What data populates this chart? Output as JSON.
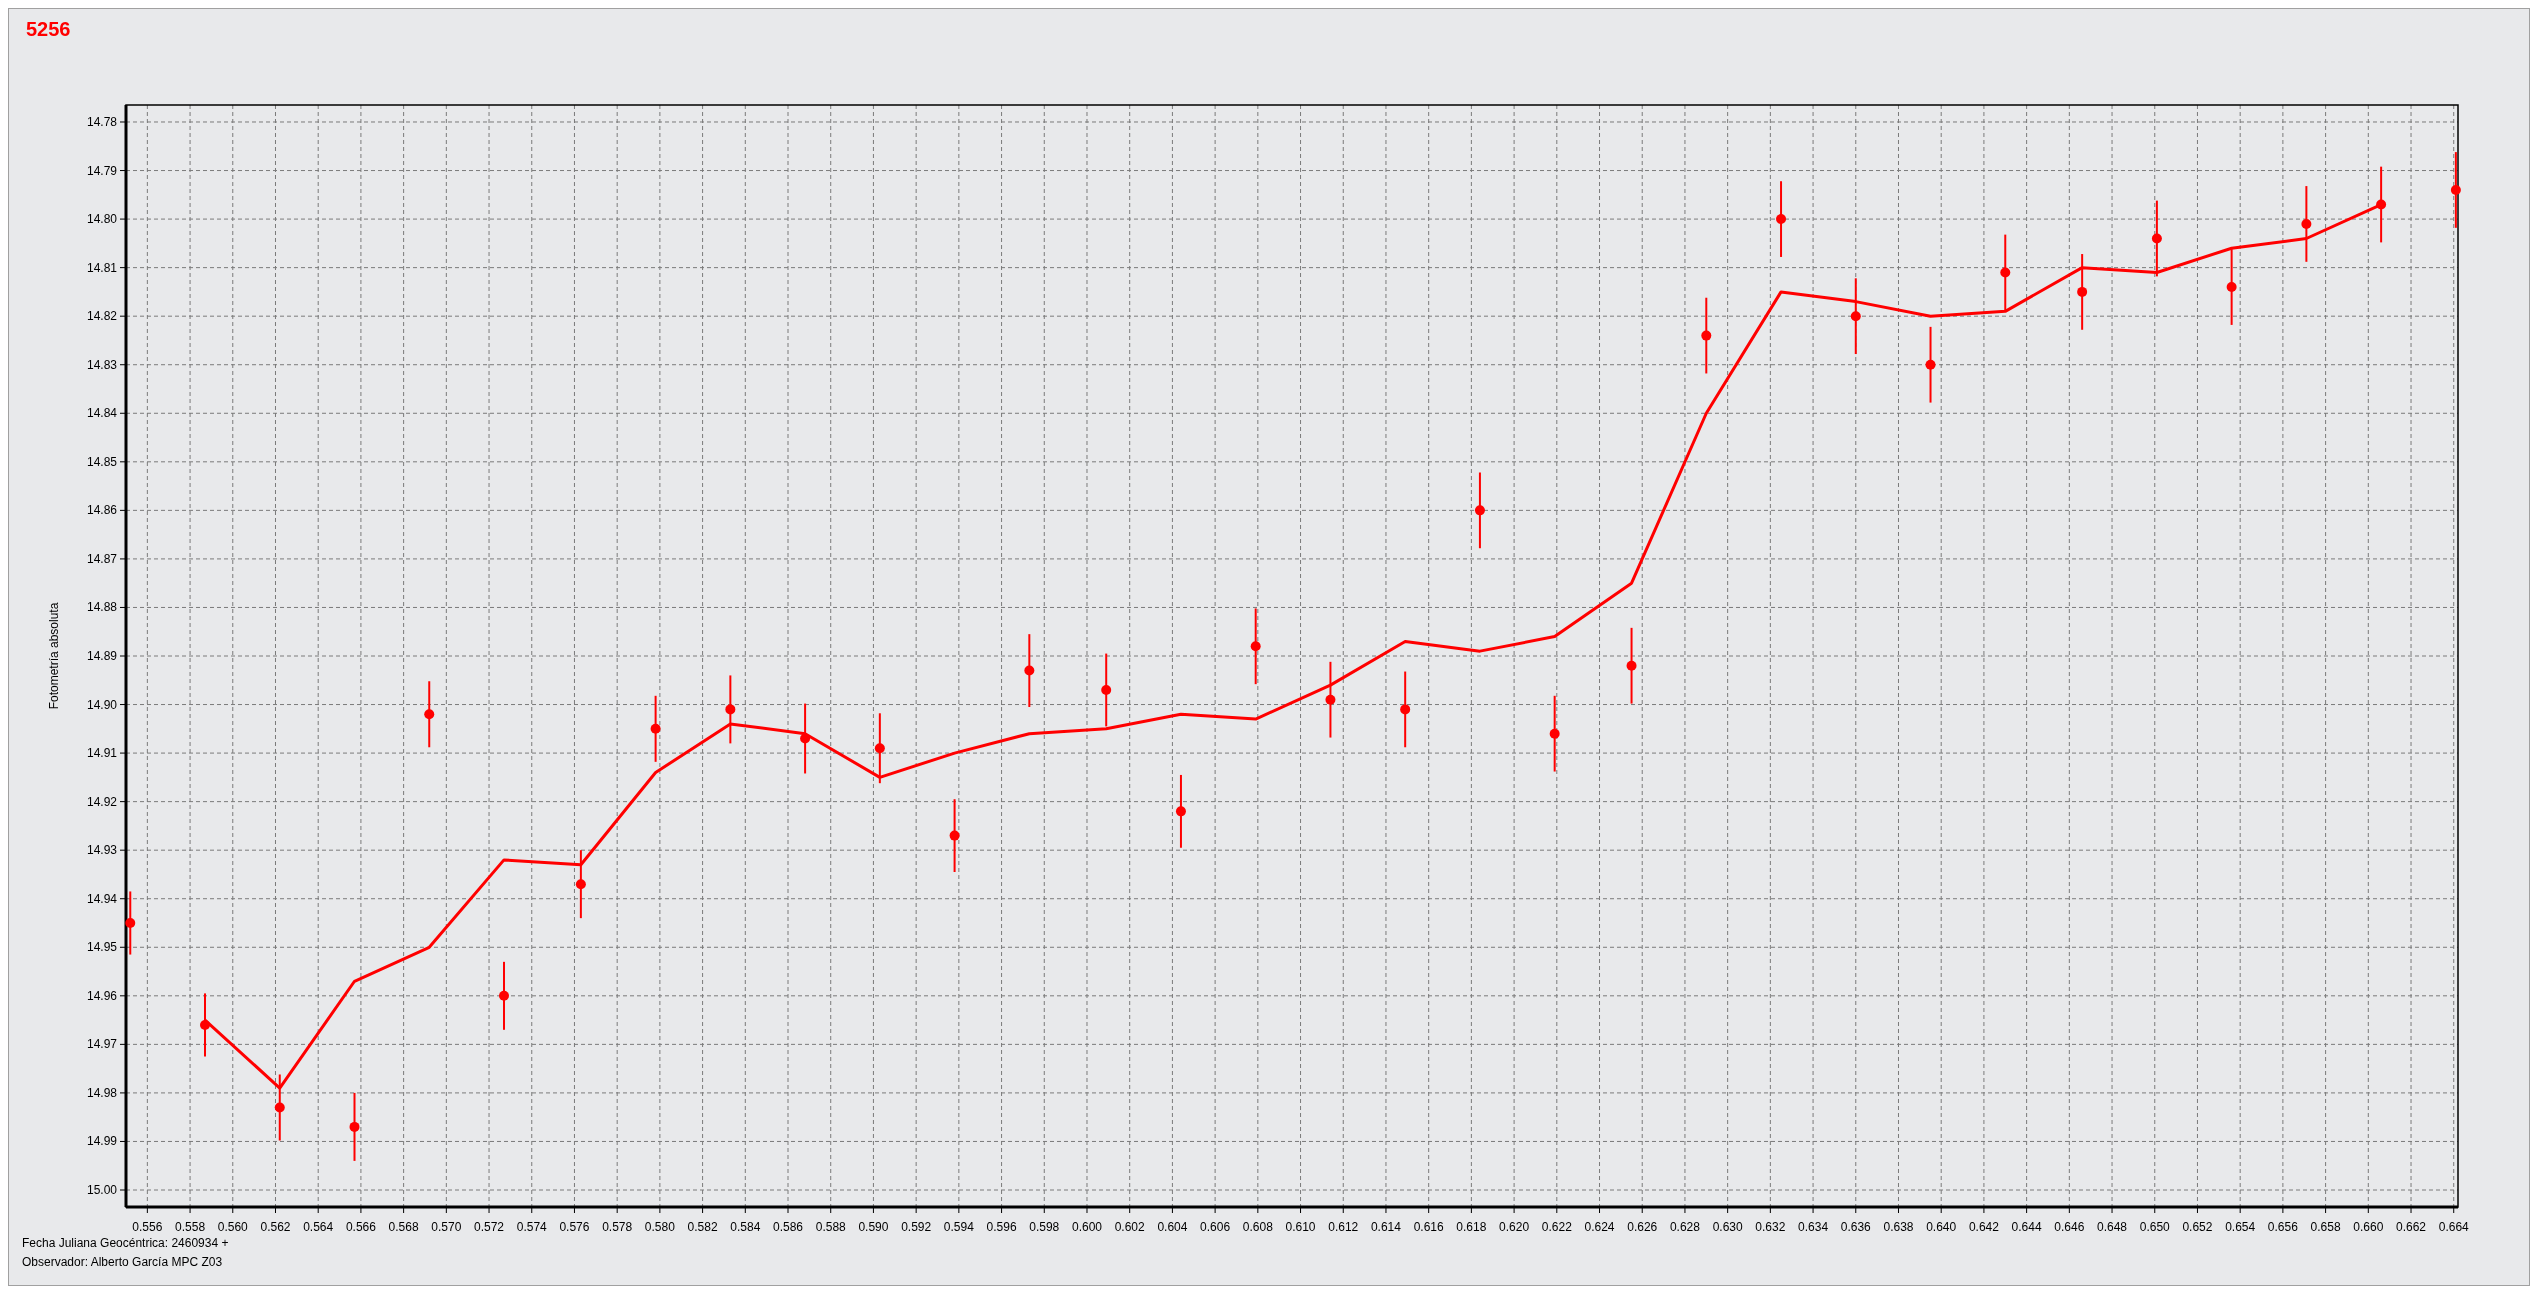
{
  "chart_data": {
    "type": "scatter",
    "title": "5256",
    "ylabel": "Fotometría absoluta",
    "annotations": [
      "Fecha Juliana Geocéntrica: 2460934 +",
      "Observador: Alberto García MPC Z03"
    ],
    "xlim": [
      0.555,
      0.6642
    ],
    "ylim": [
      15.0035,
      14.7765
    ],
    "xticks": [
      0.556,
      0.558,
      {
        "value": 0.56,
        "label": "0.560"
      },
      0.562,
      0.564,
      0.566,
      0.568,
      {
        "value": 0.57,
        "label": "0.570"
      },
      0.572,
      0.574,
      0.576,
      0.578,
      {
        "value": 0.58,
        "label": "0.580"
      },
      0.582,
      0.584,
      0.586,
      0.588,
      {
        "value": 0.59,
        "label": "0.590"
      },
      0.592,
      0.594,
      0.596,
      0.598,
      {
        "value": 0.6,
        "label": "0.600"
      },
      0.602,
      0.604,
      0.606,
      0.608,
      {
        "value": 0.61,
        "label": "0.610"
      },
      0.612,
      0.614,
      0.616,
      0.618,
      {
        "value": 0.62,
        "label": "0.620"
      },
      0.622,
      0.624,
      0.626,
      0.628,
      {
        "value": 0.63,
        "label": "0.630"
      },
      0.632,
      0.634,
      0.636,
      0.638,
      {
        "value": 0.64,
        "label": "0.640"
      },
      0.642,
      0.644,
      0.646,
      0.648,
      {
        "value": 0.65,
        "label": "0.650"
      },
      0.652,
      0.654,
      0.656,
      0.658,
      {
        "value": 0.66,
        "label": "0.660"
      },
      0.662,
      0.664
    ],
    "yticks": [
      14.78,
      14.79,
      {
        "value": 14.8,
        "label": "14.80"
      },
      14.81,
      14.82,
      14.83,
      14.84,
      14.85,
      14.86,
      14.87,
      14.88,
      14.89,
      {
        "value": 14.9,
        "label": "14.90"
      },
      14.91,
      14.92,
      14.93,
      14.94,
      14.95,
      14.96,
      14.97,
      14.98,
      14.99,
      {
        "value": 15,
        "label": "15.00"
      }
    ],
    "grid": true,
    "series": [
      {
        "marker": "circle",
        "color": "#ff0000",
        "x": [
          0.5552,
          0.5587,
          0.5622,
          0.5657,
          0.5692,
          0.5727,
          0.5763,
          0.5798,
          0.5833,
          0.5868,
          0.5903,
          0.5938,
          0.5973,
          0.6009,
          0.6044,
          0.6079,
          0.6114,
          0.6149,
          0.6184,
          0.6219,
          0.6255,
          0.629,
          0.6325,
          0.636,
          0.6395,
          0.643,
          0.6466,
          0.6501,
          0.6536,
          0.6571,
          0.6606,
          0.6641
        ],
        "values": [
          14.945,
          14.966,
          14.983,
          14.987,
          14.902,
          14.96,
          14.937,
          14.905,
          14.901,
          14.907,
          14.909,
          14.927,
          14.893,
          14.897,
          14.922,
          14.888,
          14.899,
          14.901,
          14.86,
          14.906,
          14.892,
          14.824,
          14.8,
          14.82,
          14.83,
          14.811,
          14.815,
          14.804,
          14.814,
          14.801,
          14.797,
          14.794
        ],
        "errors": [
          0.0065,
          0.0065,
          0.0068,
          0.007,
          0.0068,
          0.007,
          0.007,
          0.0068,
          0.007,
          0.0072,
          0.0072,
          0.0075,
          0.0075,
          0.0075,
          0.0075,
          0.0078,
          0.0078,
          0.0078,
          0.0078,
          0.0078,
          0.0078,
          0.0078,
          0.0078,
          0.0078,
          0.0078,
          0.0078,
          0.0078,
          0.0078,
          0.0078,
          0.0078,
          0.0078,
          0.0078
        ]
      },
      {
        "type": "line",
        "marker": "none",
        "color": "#ff0000",
        "x": [
          0.5587,
          0.5622,
          0.5657,
          0.5692,
          0.5727,
          0.5763,
          0.5798,
          0.5833,
          0.5868,
          0.5903,
          0.5938,
          0.5973,
          0.6009,
          0.6044,
          0.6079,
          0.6114,
          0.6149,
          0.6184,
          0.6219,
          0.6255,
          0.629,
          0.6325,
          0.636,
          0.6395,
          0.643,
          0.6466,
          0.6501,
          0.6536,
          0.6571,
          0.6606
        ],
        "values": [
          14.965,
          14.979,
          14.957,
          14.95,
          14.932,
          14.933,
          14.914,
          14.904,
          14.906,
          14.915,
          14.91,
          14.906,
          14.905,
          14.902,
          14.903,
          14.896,
          14.887,
          14.889,
          14.886,
          14.875,
          14.84,
          14.815,
          14.817,
          14.82,
          14.819,
          14.81,
          14.811,
          14.806,
          14.804,
          14.797
        ]
      }
    ]
  }
}
